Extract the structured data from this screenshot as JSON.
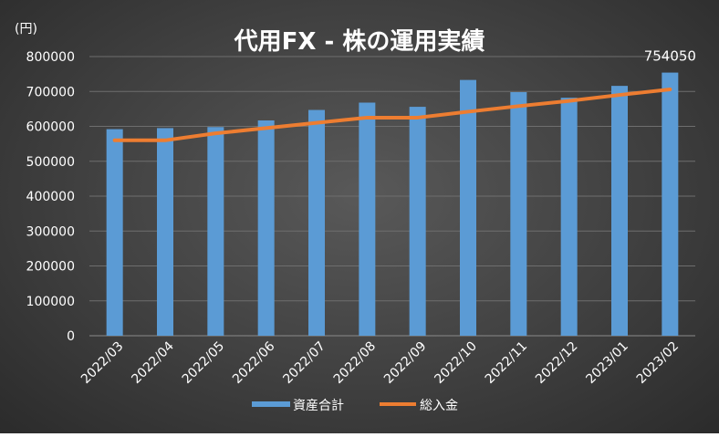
{
  "chart_data": {
    "type": "bar",
    "title": "代用FX - 株の運用実績",
    "unit_label": "(円)",
    "categories": [
      "2022/03",
      "2022/04",
      "2022/05",
      "2022/06",
      "2022/07",
      "2022/08",
      "2022/09",
      "2022/10",
      "2022/11",
      "2022/12",
      "2023/01",
      "2023/02"
    ],
    "series": [
      {
        "name": "資産合計",
        "type": "bar",
        "color": "#5b9bd5",
        "values": [
          592000,
          595000,
          598000,
          617000,
          647000,
          668000,
          656000,
          733000,
          698000,
          682000,
          716000,
          754050
        ]
      },
      {
        "name": "総入金",
        "type": "line",
        "color": "#ed7d31",
        "values": [
          560000,
          560000,
          580000,
          595000,
          610000,
          625000,
          625000,
          642000,
          658000,
          673000,
          690000,
          706000
        ]
      }
    ],
    "y_ticks": [
      "0",
      "100000",
      "200000",
      "300000",
      "400000",
      "500000",
      "600000",
      "700000",
      "800000"
    ],
    "ylim": [
      0,
      800000
    ],
    "data_labels": [
      {
        "series": "資産合計",
        "category": "2023/02",
        "text": "754050"
      }
    ],
    "grid": true,
    "legend_position": "bottom"
  }
}
